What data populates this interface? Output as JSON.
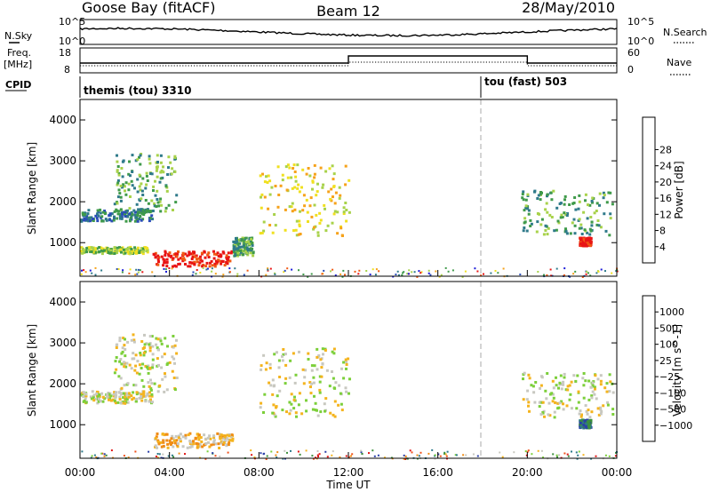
{
  "header": {
    "station": "Goose Bay (fitACF)",
    "beam": "Beam 12",
    "date": "28/May/2010"
  },
  "panels": {
    "nsky": {
      "left_label": "N.Sky",
      "right_label": "N.Search",
      "left_ticks": [
        "10^5",
        "10^0"
      ],
      "right_ticks": [
        "10^5",
        "10^0"
      ]
    },
    "freq": {
      "left_label_1": "Freq.",
      "left_label_2": "[MHz]",
      "right_label": "Nave",
      "left_ticks": [
        "18",
        "8"
      ],
      "right_ticks": [
        "60",
        "0"
      ]
    },
    "cpid": {
      "label": "CPID",
      "segments": [
        {
          "text": "themis (tou) 3310",
          "start_hour": 0
        },
        {
          "text": "tou (fast) 503",
          "start_hour": 18
        }
      ]
    }
  },
  "chart_data": [
    {
      "type": "heatmap",
      "name": "power",
      "ylabel": "Slant Range [km]",
      "xlabel": "Time UT",
      "xlim_hours": [
        0,
        24
      ],
      "x_ticks": [
        "00:00",
        "04:00",
        "08:00",
        "12:00",
        "16:00",
        "20:00",
        "00:00"
      ],
      "ylim": [
        180,
        4500
      ],
      "y_ticks": [
        1000,
        2000,
        3000,
        4000
      ],
      "colorbar": {
        "label": "Power [dB]",
        "ticks": [
          "4",
          "8",
          "12",
          "16",
          "20",
          "24",
          "28"
        ],
        "colors": [
          "#1b1bd8",
          "#2a4cb8",
          "#2f7a8a",
          "#3f9a4a",
          "#a8d24a",
          "#f0e020",
          "#f6a21a",
          "#f05a14",
          "#e81414"
        ]
      },
      "echo_regions": [
        {
          "start_hour": 0.0,
          "end_hour": 3.2,
          "range_min": 1550,
          "range_max": 1850,
          "mean_db": 8
        },
        {
          "start_hour": 1.5,
          "end_hour": 4.3,
          "range_min": 1800,
          "range_max": 3250,
          "mean_db": 10
        },
        {
          "start_hour": 0.0,
          "end_hour": 3.0,
          "range_min": 760,
          "range_max": 920,
          "mean_db": 14
        },
        {
          "start_hour": 3.2,
          "end_hour": 6.8,
          "range_min": 450,
          "range_max": 820,
          "mean_db": 27
        },
        {
          "start_hour": 6.8,
          "end_hour": 7.7,
          "range_min": 700,
          "range_max": 1150,
          "mean_db": 10
        },
        {
          "start_hour": 8.0,
          "end_hour": 12.0,
          "range_min": 1200,
          "range_max": 2950,
          "mean_db": 17
        },
        {
          "start_hour": 19.7,
          "end_hour": 23.8,
          "range_min": 1200,
          "range_max": 2300,
          "mean_db": 12
        },
        {
          "start_hour": 22.3,
          "end_hour": 22.8,
          "range_min": 950,
          "range_max": 1150,
          "mean_db": 28
        }
      ]
    },
    {
      "type": "heatmap",
      "name": "velocity",
      "ylabel": "Slant Range [km]",
      "xlabel": "Time UT",
      "xlim_hours": [
        0,
        24
      ],
      "x_ticks": [
        "00:00",
        "04:00",
        "08:00",
        "12:00",
        "16:00",
        "20:00",
        "00:00"
      ],
      "ylim": [
        180,
        4500
      ],
      "y_ticks": [
        1000,
        2000,
        3000,
        4000
      ],
      "colorbar": {
        "label": "Velocity [m s^-1]",
        "ticks": [
          "1000",
          "500",
          "100",
          "25",
          "−25",
          "−100",
          "−500",
          "−1000"
        ],
        "colors": [
          "#2a3fa8",
          "#2d7a8a",
          "#3c8f3c",
          "#7ccf3a",
          "#c8c8c0",
          "#f4b41e",
          "#f08c14",
          "#f0501a",
          "#e01414"
        ]
      },
      "echo_regions": [
        {
          "start_hour": 0.0,
          "end_hour": 3.2,
          "range_min": 1550,
          "range_max": 1850,
          "mean_velocity": 0
        },
        {
          "start_hour": 1.5,
          "end_hour": 4.3,
          "range_min": 1800,
          "range_max": 3250,
          "mean_velocity": 0
        },
        {
          "start_hour": 3.2,
          "end_hour": 6.8,
          "range_min": 450,
          "range_max": 820,
          "mean_velocity": -100
        },
        {
          "start_hour": 8.0,
          "end_hour": 12.0,
          "range_min": 1200,
          "range_max": 2950,
          "mean_velocity": 0
        },
        {
          "start_hour": 19.7,
          "end_hour": 23.8,
          "range_min": 1200,
          "range_max": 2300,
          "mean_velocity": 0
        },
        {
          "start_hour": 22.3,
          "end_hour": 22.8,
          "range_min": 950,
          "range_max": 1150,
          "mean_velocity": 500
        }
      ]
    }
  ]
}
